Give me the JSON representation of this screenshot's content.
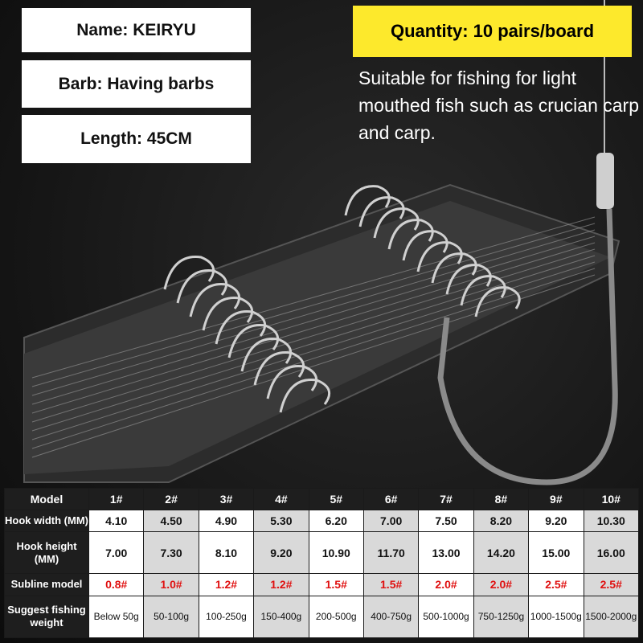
{
  "specs": {
    "name": "Name: KEIRYU",
    "barb": "Barb: Having barbs",
    "length": "Length: 45CM"
  },
  "quantity": "Quantity: 10 pairs/board",
  "description": "Suitable for fishing for light mouthed fish such as crucian carp and carp.",
  "colors": {
    "highlight": "#fde92c",
    "subline_text": "#e01010",
    "table_header": "#1e1e1e"
  },
  "table": {
    "header_label": "Model",
    "models": [
      "1#",
      "2#",
      "3#",
      "4#",
      "5#",
      "6#",
      "7#",
      "8#",
      "9#",
      "10#"
    ],
    "rows": [
      {
        "label": "Hook width (MM)",
        "values": [
          "4.10",
          "4.50",
          "4.90",
          "5.30",
          "6.20",
          "7.00",
          "7.50",
          "8.20",
          "9.20",
          "10.30"
        ]
      },
      {
        "label": "Hook height (MM)",
        "values": [
          "7.00",
          "7.30",
          "8.10",
          "9.20",
          "10.90",
          "11.70",
          "13.00",
          "14.20",
          "15.00",
          "16.00"
        ]
      },
      {
        "label": "Subline model",
        "values": [
          "0.8#",
          "1.0#",
          "1.2#",
          "1.2#",
          "1.5#",
          "1.5#",
          "2.0#",
          "2.0#",
          "2.5#",
          "2.5#"
        ]
      },
      {
        "label": "Suggest fishing weight",
        "values": [
          "Below 50g",
          "50-100g",
          "100-250g",
          "150-400g",
          "200-500g",
          "400-750g",
          "500-1000g",
          "750-1250g",
          "1000-1500g",
          "1500-2000g"
        ]
      }
    ]
  }
}
